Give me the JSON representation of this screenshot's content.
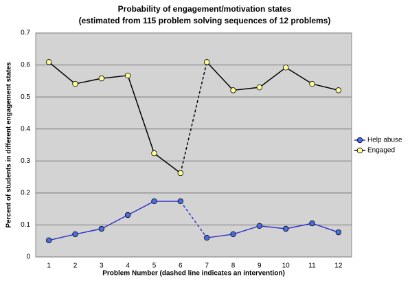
{
  "chart_data": {
    "type": "line",
    "title": "Probability of engagement/motivation states",
    "subtitle": "(estimated from 115 problem solving sequences of 12 problems)",
    "x_label": "Problem Number (dashed line indicates an intervention)",
    "y_label": "Percent of students in different engagement states",
    "categories": [
      "1",
      "2",
      "3",
      "4",
      "5",
      "6",
      "7",
      "8",
      "9",
      "10",
      "11",
      "12"
    ],
    "series": [
      {
        "name": "Help abuse",
        "color": "#3333cc",
        "marker_color": "#4a6ee0",
        "values": [
          0.052,
          0.071,
          0.088,
          0.131,
          0.174,
          0.174,
          0.06,
          0.071,
          0.097,
          0.088,
          0.105,
          0.077
        ]
      },
      {
        "name": "Engaged",
        "color": "#000000",
        "marker_color": "#ffff99",
        "values": [
          0.609,
          0.541,
          0.558,
          0.567,
          0.324,
          0.262,
          0.609,
          0.521,
          0.53,
          0.592,
          0.541,
          0.521
        ]
      }
    ],
    "dashed_segment": [
      5,
      6
    ],
    "ylim": [
      0,
      0.7
    ],
    "yticks": [
      0,
      0.1,
      0.2,
      0.3,
      0.4,
      0.5,
      0.6,
      0.7
    ],
    "grid": true,
    "legend": "right"
  }
}
